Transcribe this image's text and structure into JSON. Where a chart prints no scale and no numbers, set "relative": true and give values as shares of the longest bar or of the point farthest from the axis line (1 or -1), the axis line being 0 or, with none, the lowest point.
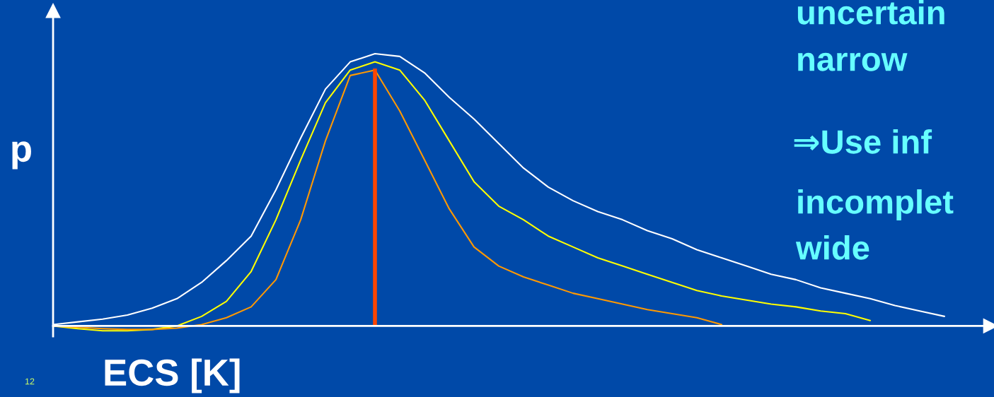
{
  "chart_data": {
    "type": "line",
    "relative": true,
    "xlabel": "ECS [K]",
    "ylabel": "p",
    "categories": [
      null,
      null,
      null,
      null,
      null,
      null,
      null,
      null,
      null,
      null,
      null,
      null,
      null,
      null,
      null,
      null,
      null,
      null,
      null,
      null,
      null,
      null,
      null,
      null,
      null,
      null,
      null,
      null,
      null,
      null,
      null,
      null,
      null,
      null,
      null,
      null,
      null,
      null
    ],
    "series": [
      {
        "color": "#ffffff",
        "values": [
          0.005,
          0.015,
          0.025,
          0.04,
          0.065,
          0.1,
          0.16,
          0.24,
          0.33,
          0.5,
          0.69,
          0.87,
          0.97,
          1.0,
          0.99,
          0.93,
          0.84,
          0.76,
          0.67,
          0.58,
          0.51,
          0.46,
          0.42,
          0.39,
          0.35,
          0.32,
          0.28,
          0.25,
          0.22,
          0.19,
          0.17,
          0.14,
          0.12,
          0.1,
          0.075,
          0.055,
          0.035,
          null
        ]
      },
      {
        "color": "#ffff00",
        "values": [
          0,
          -0.01,
          -0.018,
          -0.018,
          -0.013,
          0,
          0.035,
          0.09,
          0.2,
          0.39,
          0.61,
          0.82,
          0.94,
          0.97,
          0.94,
          0.83,
          0.68,
          0.53,
          0.44,
          0.39,
          0.33,
          0.29,
          0.25,
          0.22,
          0.19,
          0.16,
          0.13,
          0.11,
          0.095,
          0.08,
          0.07,
          0.055,
          0.045,
          0.02,
          null,
          null,
          null,
          null
        ]
      },
      {
        "color": "#ff9900",
        "values": [
          0,
          -0.005,
          -0.01,
          -0.013,
          -0.013,
          -0.008,
          0.005,
          0.03,
          0.07,
          0.17,
          0.39,
          0.68,
          0.92,
          0.94,
          0.79,
          0.61,
          0.43,
          0.29,
          0.22,
          0.18,
          0.15,
          0.12,
          0.1,
          0.08,
          0.06,
          0.045,
          0.03,
          0.005,
          null,
          null,
          null,
          null,
          null,
          null,
          null,
          null,
          null,
          null
        ]
      }
    ],
    "annotations": [
      "uncertain",
      "narrow",
      "⇒Use inf",
      "incomplet",
      "wide",
      "12"
    ]
  }
}
